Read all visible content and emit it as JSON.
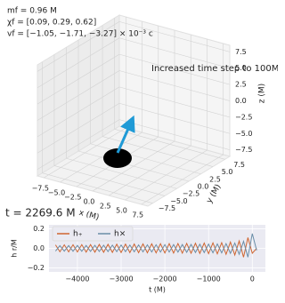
{
  "chart_data": [
    {
      "type": "axes3d",
      "annotations": [
        "mf = 0.96 M",
        "χf = [0.09, 0.29, 0.62]",
        "vf = [−1.05, −1.71, −3.27] × 10⁻³ c",
        "Increased time step to 100M",
        "t = 2269.6 M"
      ],
      "xlabel": "x (M)",
      "ylabel": "y (M)",
      "zlabel": "z (M)",
      "xlim": [
        -8.5,
        8.5
      ],
      "ylim": [
        -8.5,
        8.5
      ],
      "zlim": [
        -8.5,
        8.5
      ],
      "xticks": [
        {
          "value": -7.5,
          "label": "−7.5"
        },
        {
          "value": -5,
          "label": "−5.0"
        },
        {
          "value": -2.5,
          "label": "−2.5"
        },
        {
          "value": 0,
          "label": "0.0"
        },
        2.5,
        {
          "value": 5,
          "label": "5.0"
        },
        7.5
      ],
      "yticks": [
        {
          "value": -7.5,
          "label": "−7.5"
        },
        {
          "value": -5,
          "label": "−5.0"
        },
        {
          "value": -2.5,
          "label": "−2.5"
        },
        {
          "value": 0,
          "label": "0.0"
        },
        2.5,
        {
          "value": 5,
          "label": "5.0"
        },
        7.5
      ],
      "zticks": [
        {
          "value": -7.5,
          "label": "−7.5"
        },
        {
          "value": -5,
          "label": "−5.0"
        },
        {
          "value": -2.5,
          "label": "−2.5"
        },
        {
          "value": 0,
          "label": "0.0"
        },
        2.5,
        {
          "value": 5,
          "label": "5.0"
        },
        7.5
      ],
      "grid": true
    },
    {
      "type": "line",
      "xlabel": "t (M)",
      "ylabel": "h r/M",
      "x": [
        -4500,
        -4400,
        -4300,
        -4200,
        -4100,
        -4000,
        -3900,
        -3800,
        -3700,
        -3600,
        -3500,
        -3400,
        -3300,
        -3200,
        -3100,
        -3000,
        -2900,
        -2800,
        -2700,
        -2600,
        -2500,
        -2400,
        -2300,
        -2200,
        -2100,
        -2000,
        -1900,
        -1800,
        -1700,
        -1600,
        -1500,
        -1400,
        -1300,
        -1200,
        -1100,
        -1000,
        -900,
        -800,
        -700,
        -600,
        -500,
        -400,
        -300,
        -200,
        -100,
        0,
        100
      ],
      "series": [
        {
          "name": "h₊",
          "color": "#cf6530",
          "values": [
            0.035,
            -0.035,
            0.036,
            -0.036,
            0.037,
            -0.037,
            0.038,
            -0.038,
            0.039,
            -0.039,
            0.04,
            -0.04,
            0.041,
            -0.041,
            0.042,
            -0.042,
            0.043,
            -0.043,
            0.044,
            -0.044,
            0.045,
            -0.045,
            0.046,
            -0.046,
            0.047,
            -0.047,
            0.048,
            -0.048,
            0.049,
            -0.049,
            0.05,
            -0.05,
            0.052,
            -0.052,
            0.054,
            -0.054,
            0.056,
            -0.056,
            0.058,
            -0.06,
            0.064,
            -0.068,
            0.075,
            -0.09,
            0.11,
            -0.05,
            0.0
          ]
        },
        {
          "name": "h×",
          "color": "#6a8ea8",
          "values": [
            -0.028,
            0.028,
            -0.029,
            0.029,
            -0.03,
            0.03,
            -0.03,
            0.03,
            -0.031,
            0.031,
            -0.032,
            0.032,
            -0.033,
            0.033,
            -0.034,
            0.034,
            -0.034,
            0.034,
            -0.035,
            0.035,
            -0.036,
            0.036,
            -0.037,
            0.037,
            -0.038,
            0.038,
            -0.038,
            0.038,
            -0.039,
            0.039,
            -0.04,
            0.04,
            -0.042,
            0.042,
            -0.043,
            0.043,
            -0.045,
            0.045,
            -0.046,
            0.048,
            -0.051,
            0.054,
            -0.06,
            0.072,
            -0.09,
            0.15,
            -0.02
          ]
        }
      ],
      "xlim": [
        -4650,
        300
      ],
      "ylim": [
        -0.24,
        0.24
      ],
      "xticks": [
        {
          "value": -4000,
          "label": "−4000"
        },
        {
          "value": -3000,
          "label": "−3000"
        },
        {
          "value": -2000,
          "label": "−2000"
        },
        {
          "value": -1000,
          "label": "−1000"
        },
        0
      ],
      "yticks": [
        {
          "value": -0.2,
          "label": "−0.2"
        },
        {
          "value": 0,
          "label": "0.0"
        },
        0.2
      ],
      "grid": true,
      "legend": "upper left"
    }
  ]
}
